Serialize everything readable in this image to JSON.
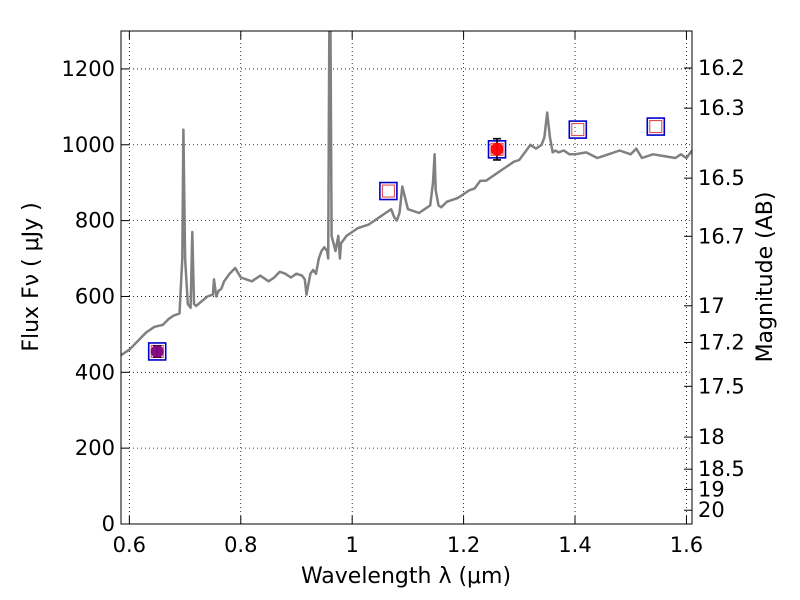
{
  "chart_data": {
    "type": "line",
    "title": "",
    "xlabel": "Wavelength  λ (μm)",
    "ylabel": "Flux  Fν  ( μJy )",
    "y2label": "Magnitude (AB)",
    "xlim": [
      0.585,
      1.61
    ],
    "ylim": [
      0,
      1300
    ],
    "grid": true,
    "x_ticks": [
      0.6,
      0.8,
      1.0,
      1.2,
      1.4,
      1.6
    ],
    "x_tick_labels": [
      "0.6",
      "0.8",
      "1",
      "1.2",
      "1.4",
      "1.6"
    ],
    "y_ticks": [
      0,
      200,
      400,
      600,
      800,
      1000,
      1200
    ],
    "y_tick_labels": [
      "0",
      "200",
      "400",
      "600",
      "800",
      "1000",
      "1200"
    ],
    "mag_ticks": [
      16.2,
      16.3,
      16.5,
      16.7,
      17,
      17.2,
      17.5,
      18,
      18.5,
      19,
      20
    ],
    "mag_tick_labels": [
      "16.2",
      "16.3",
      "16.5",
      "16.7",
      "17",
      "17.2",
      "17.5",
      "18",
      "18.5",
      "19",
      "20"
    ],
    "series": [
      {
        "name": "spectrum",
        "color": "#808080",
        "x": [
          0.585,
          0.6,
          0.62,
          0.63,
          0.645,
          0.66,
          0.67,
          0.68,
          0.69,
          0.695,
          0.697,
          0.7,
          0.705,
          0.71,
          0.713,
          0.716,
          0.72,
          0.74,
          0.75,
          0.752,
          0.756,
          0.76,
          0.765,
          0.77,
          0.78,
          0.79,
          0.8,
          0.82,
          0.835,
          0.85,
          0.86,
          0.87,
          0.88,
          0.89,
          0.9,
          0.91,
          0.915,
          0.918,
          0.925,
          0.93,
          0.935,
          0.94,
          0.945,
          0.95,
          0.955,
          0.957,
          0.959,
          0.961,
          0.963,
          0.97,
          0.975,
          0.978,
          0.98,
          0.99,
          1.0,
          1.01,
          1.02,
          1.03,
          1.04,
          1.05,
          1.06,
          1.07,
          1.075,
          1.08,
          1.085,
          1.09,
          1.1,
          1.11,
          1.12,
          1.13,
          1.14,
          1.145,
          1.148,
          1.15,
          1.155,
          1.16,
          1.17,
          1.18,
          1.19,
          1.2,
          1.21,
          1.22,
          1.23,
          1.24,
          1.25,
          1.26,
          1.27,
          1.28,
          1.29,
          1.3,
          1.31,
          1.32,
          1.33,
          1.34,
          1.345,
          1.35,
          1.355,
          1.36,
          1.365,
          1.37,
          1.38,
          1.39,
          1.4,
          1.42,
          1.44,
          1.46,
          1.48,
          1.5,
          1.51,
          1.52,
          1.54,
          1.56,
          1.58,
          1.59,
          1.6,
          1.61
        ],
        "y": [
          445,
          460,
          490,
          505,
          520,
          525,
          540,
          550,
          555,
          700,
          1040,
          700,
          580,
          570,
          770,
          580,
          575,
          600,
          605,
          645,
          600,
          615,
          620,
          640,
          660,
          675,
          650,
          640,
          655,
          640,
          650,
          665,
          660,
          650,
          660,
          655,
          645,
          605,
          660,
          670,
          660,
          700,
          720,
          730,
          720,
          700,
          1300,
          1300,
          760,
          720,
          760,
          700,
          740,
          760,
          770,
          780,
          785,
          790,
          800,
          810,
          820,
          830,
          810,
          800,
          820,
          890,
          830,
          825,
          820,
          830,
          840,
          900,
          975,
          880,
          840,
          835,
          850,
          855,
          860,
          870,
          880,
          885,
          905,
          905,
          915,
          925,
          935,
          945,
          955,
          960,
          980,
          1000,
          990,
          1000,
          1020,
          1085,
          1020,
          980,
          985,
          980,
          985,
          975,
          975,
          980,
          965,
          975,
          985,
          975,
          990,
          965,
          975,
          970,
          965,
          975,
          965,
          985
        ]
      }
    ],
    "photometry_model": [
      {
        "x": 0.65,
        "y": 455
      },
      {
        "x": 1.065,
        "y": 878
      },
      {
        "x": 1.26,
        "y": 988
      },
      {
        "x": 1.405,
        "y": 1040
      },
      {
        "x": 1.545,
        "y": 1048
      }
    ],
    "photometry_observed": [
      {
        "x": 0.65,
        "y": 455,
        "yerr": 15,
        "color": "#800080"
      },
      {
        "x": 1.26,
        "y": 988,
        "yerr": 28,
        "color": "#ff0000"
      }
    ],
    "colors": {
      "model_box_outer": "#0000cc",
      "model_box_inner": "#e04040",
      "grid": "#000000",
      "spectrum": "#808080"
    }
  }
}
